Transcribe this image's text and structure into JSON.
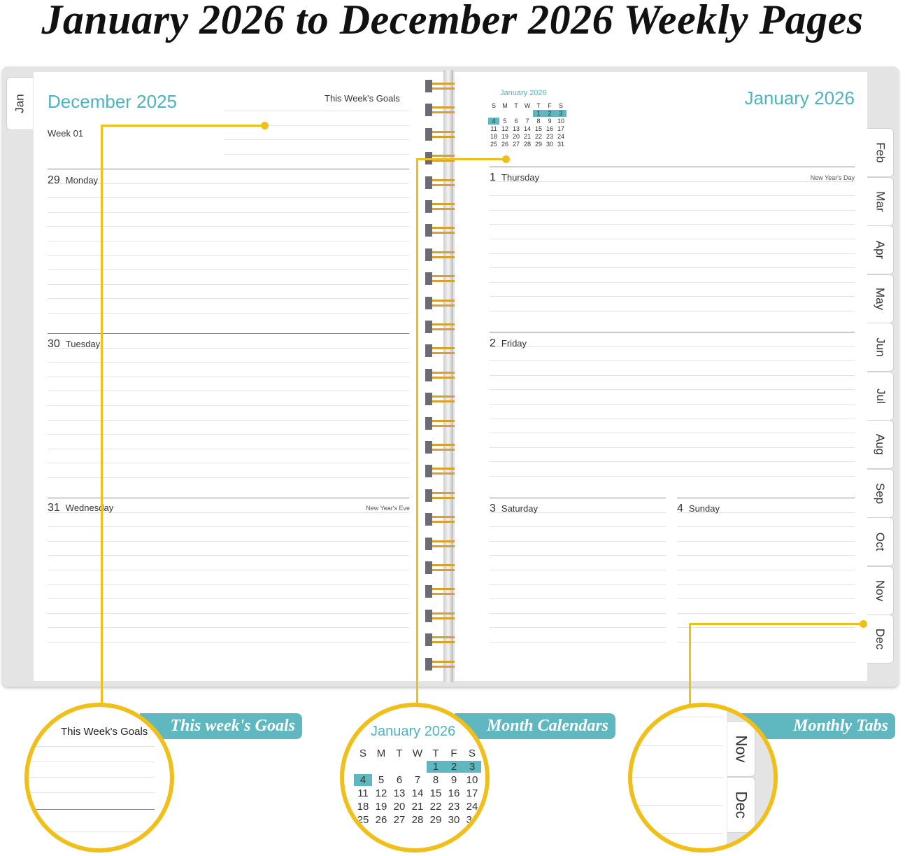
{
  "title": "January 2026 to December 2026 Weekly Pages",
  "colors": {
    "accent_teal": "#5fb8c0",
    "callout_yellow": "#f0bf1a"
  },
  "left_page": {
    "month": "December 2025",
    "goals_label": "This Week's Goals",
    "week": "Week 01",
    "tab": "Jan",
    "days": [
      {
        "num": "29",
        "name": "Monday",
        "holiday": ""
      },
      {
        "num": "30",
        "name": "Tuesday",
        "holiday": ""
      },
      {
        "num": "31",
        "name": "Wednesday",
        "holiday": "New Year's Eve"
      }
    ]
  },
  "right_page": {
    "month": "January 2026",
    "mini_calendar": {
      "title": "January 2026",
      "weekdays": [
        "S",
        "M",
        "T",
        "W",
        "T",
        "F",
        "S"
      ],
      "cells": [
        "",
        "",
        "",
        "",
        "1",
        "2",
        "3",
        "4",
        "5",
        "6",
        "7",
        "8",
        "9",
        "10",
        "11",
        "12",
        "13",
        "14",
        "15",
        "16",
        "17",
        "18",
        "19",
        "20",
        "21",
        "22",
        "23",
        "24",
        "25",
        "26",
        "27",
        "28",
        "29",
        "30",
        "31"
      ],
      "highlighted": [
        "1",
        "2",
        "3",
        "4"
      ]
    },
    "days": [
      {
        "num": "1",
        "name": "Thursday",
        "holiday": "New Year's Day"
      },
      {
        "num": "2",
        "name": "Friday",
        "holiday": ""
      },
      {
        "num": "3",
        "name": "Saturday",
        "holiday": ""
      },
      {
        "num": "4",
        "name": "Sunday",
        "holiday": ""
      }
    ],
    "tabs": [
      "Feb",
      "Mar",
      "Apr",
      "May",
      "Jun",
      "Jul",
      "Aug",
      "Sep",
      "Oct",
      "Nov",
      "Dec"
    ]
  },
  "callouts": [
    {
      "label": "This week's Goals",
      "zoom_text": "This Week's Goals"
    },
    {
      "label": "Month Calendars",
      "zoom_title": "January 2026"
    },
    {
      "label": "Monthly Tabs",
      "zoom_tabs": [
        "Nov",
        "Dec"
      ]
    }
  ]
}
